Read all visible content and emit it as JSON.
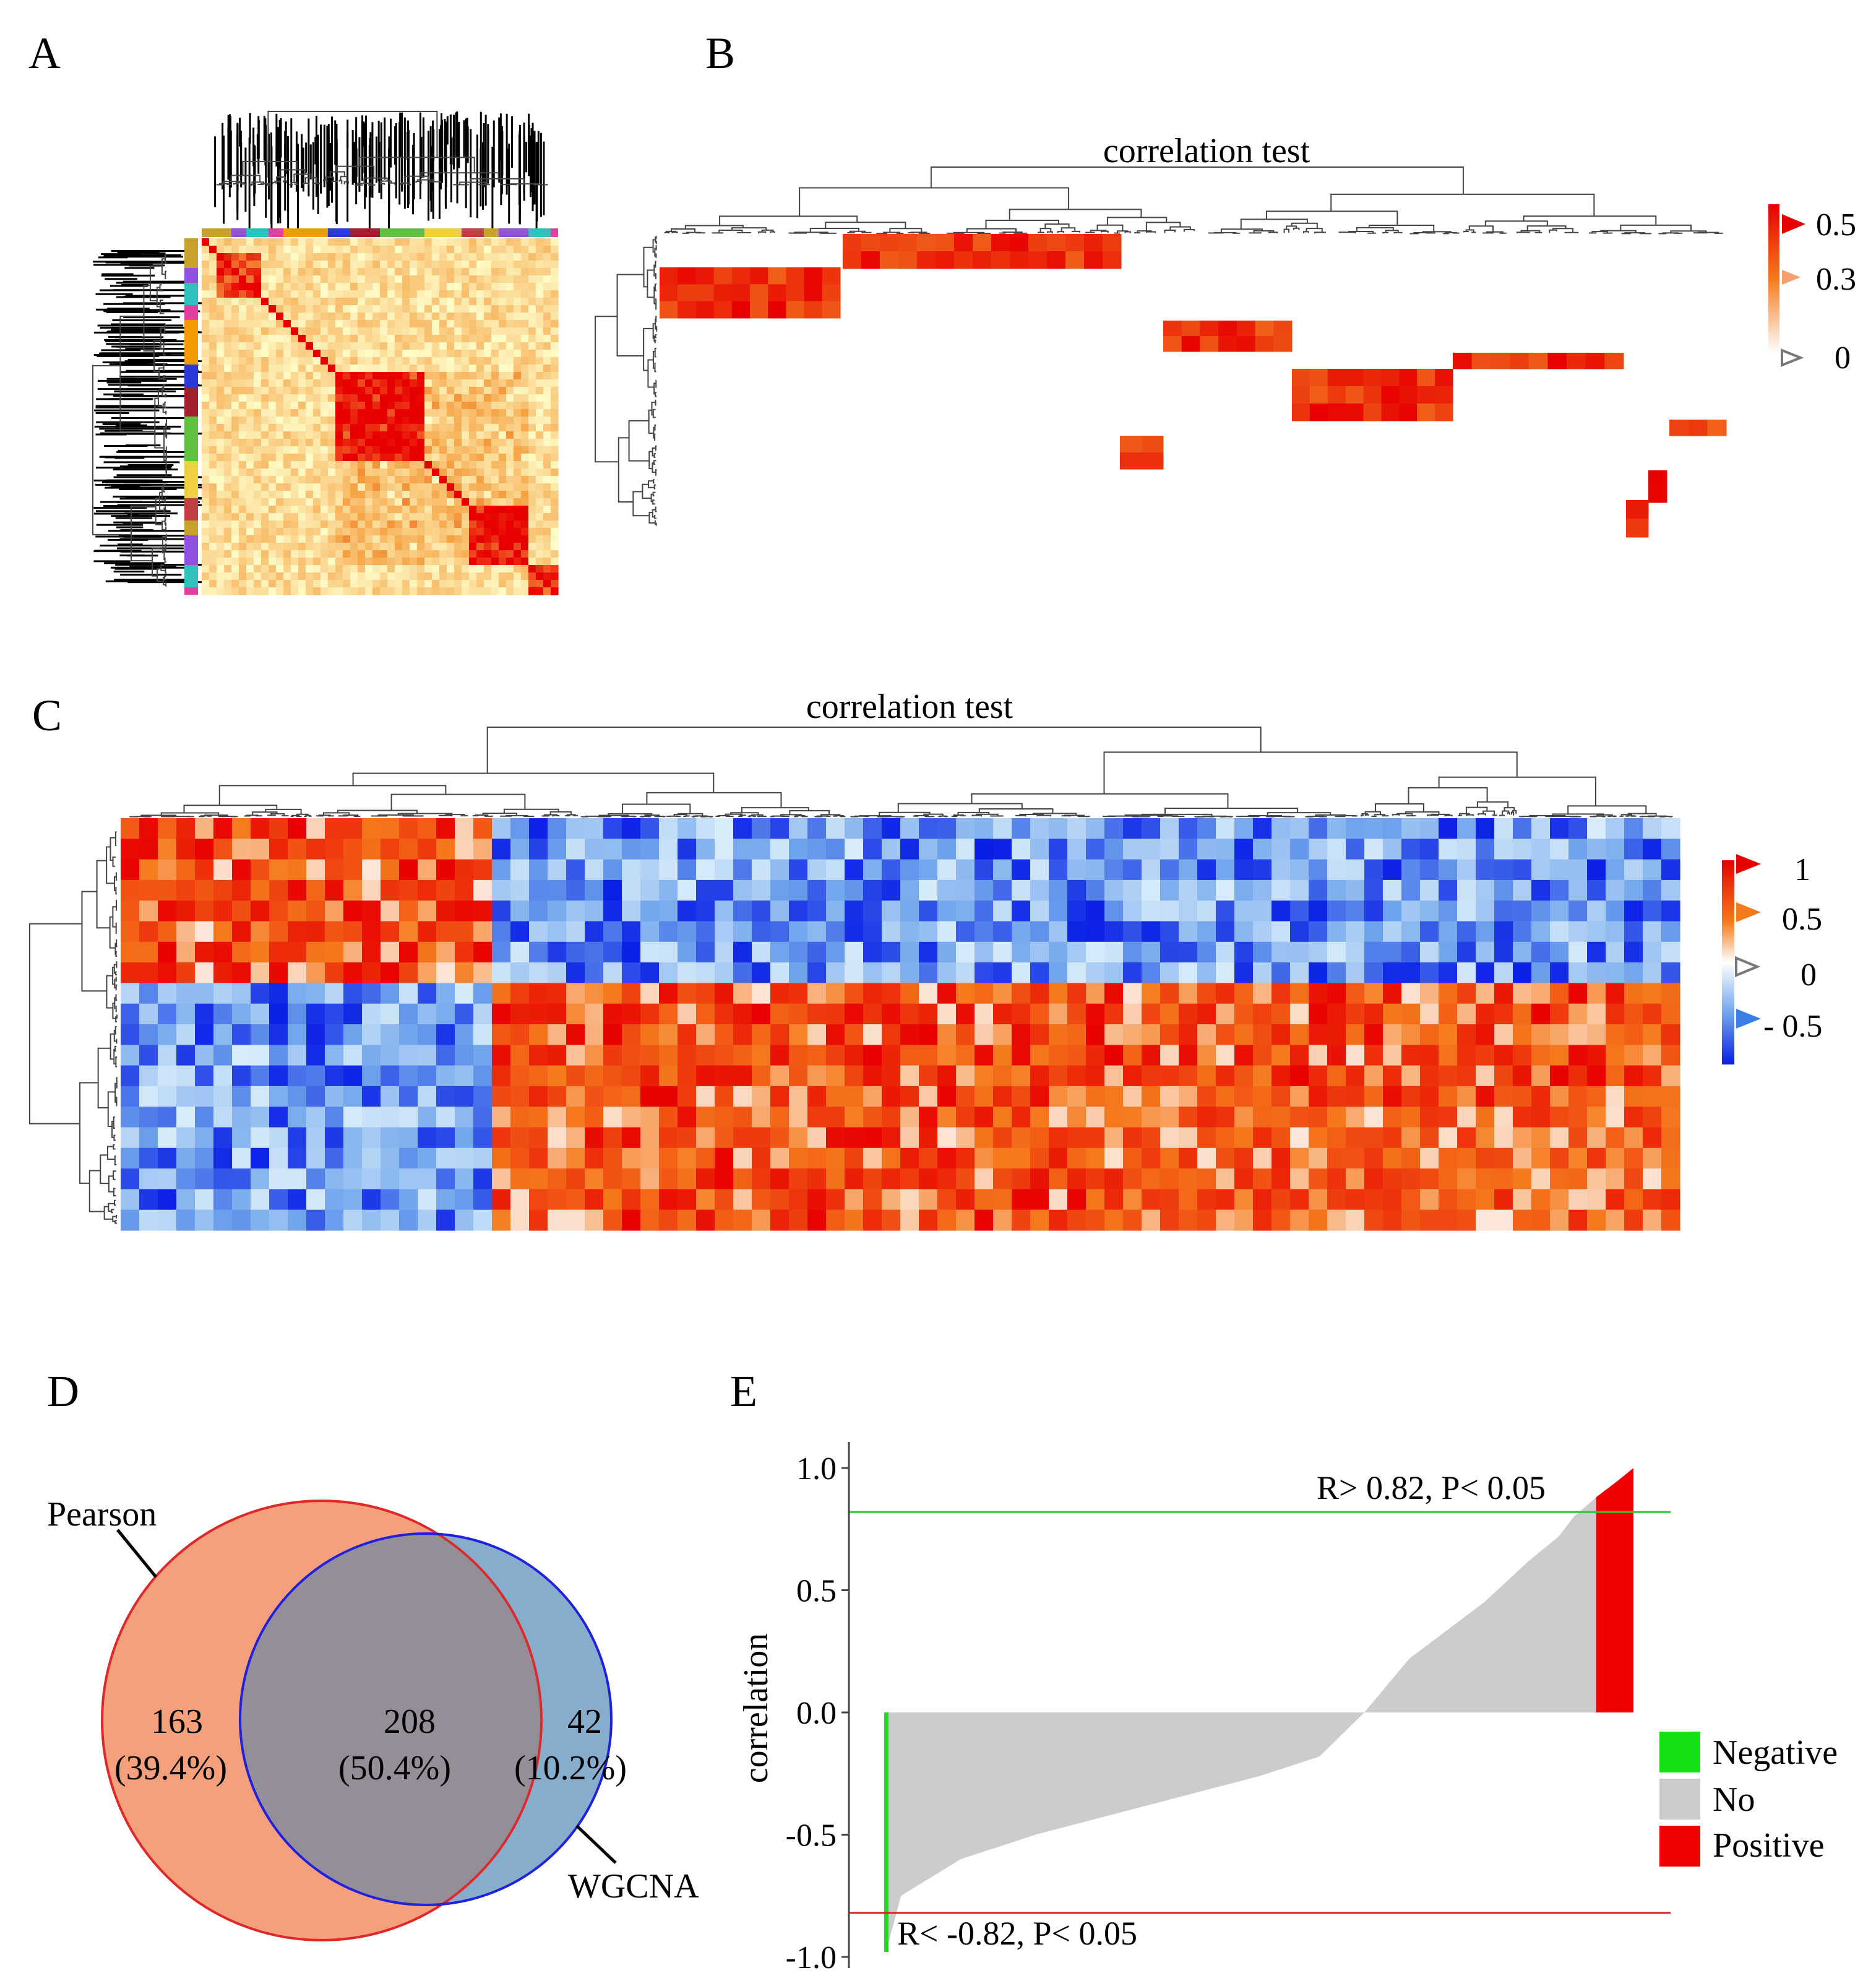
{
  "panels": {
    "A": {
      "label": "A"
    },
    "B": {
      "label": "B",
      "title": "correlation test",
      "legend_ticks": [
        "0.5",
        "0.3",
        "0"
      ]
    },
    "C": {
      "label": "C",
      "title": "correlation test",
      "legend_ticks": [
        "1",
        "0.5",
        "0",
        "- 0.5"
      ]
    },
    "D": {
      "label": "D"
    },
    "E": {
      "label": "E"
    }
  },
  "colors": {
    "red": "#f00000",
    "orange": "#f57a1c",
    "blue": "#1430e8",
    "lightblue": "#a8cff0",
    "grey": "#cccccc",
    "green": "#14e014",
    "venn_pearson": "#f4a07c",
    "venn_overlap": "#938e98",
    "venn_wgcna": "#86aecc"
  },
  "chart_data": [
    {
      "panel": "D",
      "type": "venn",
      "sets": [
        {
          "name": "Pearson",
          "edge_color": "#e0282a"
        },
        {
          "name": "WGCNA",
          "edge_color": "#2020e0"
        }
      ],
      "regions": [
        {
          "id": "pearson_only",
          "count": "163",
          "percent": "(39.4%)"
        },
        {
          "id": "both",
          "count": "208",
          "percent": "(50.4%)"
        },
        {
          "id": "wgcna_only",
          "count": "42",
          "percent": "(10.2%)"
        }
      ]
    },
    {
      "panel": "E",
      "type": "area",
      "ylabel": "correlation",
      "xlabel": "",
      "ylim": [
        -1.0,
        1.0
      ],
      "yticks": [
        "1.0",
        "0.5",
        "0.0",
        "-0.5",
        "-1.0"
      ],
      "ytick_values": [
        1.0,
        0.5,
        0.0,
        -0.5,
        -1.0
      ],
      "thresholds": [
        {
          "value": 0.82,
          "color": "#22cc22",
          "label": "R> 0.82, P< 0.05"
        },
        {
          "value": -0.82,
          "color": "#dd2222",
          "label": "R< -0.82, P< 0.05"
        }
      ],
      "curve": {
        "x": [
          0,
          0.02,
          0.1,
          0.2,
          0.3,
          0.4,
          0.5,
          0.58,
          0.64,
          0.7,
          0.8,
          0.86,
          0.9,
          0.92,
          0.95,
          0.98,
          1.0
        ],
        "y": [
          -0.98,
          -0.75,
          -0.6,
          -0.5,
          -0.42,
          -0.34,
          -0.26,
          -0.18,
          0.0,
          0.22,
          0.45,
          0.62,
          0.72,
          0.8,
          0.88,
          0.95,
          1.0
        ]
      },
      "legend": [
        {
          "label": "Negative",
          "color": "#14e014"
        },
        {
          "label": "No",
          "color": "#cccccc"
        },
        {
          "label": "Positive",
          "color": "#f00000"
        }
      ]
    }
  ]
}
